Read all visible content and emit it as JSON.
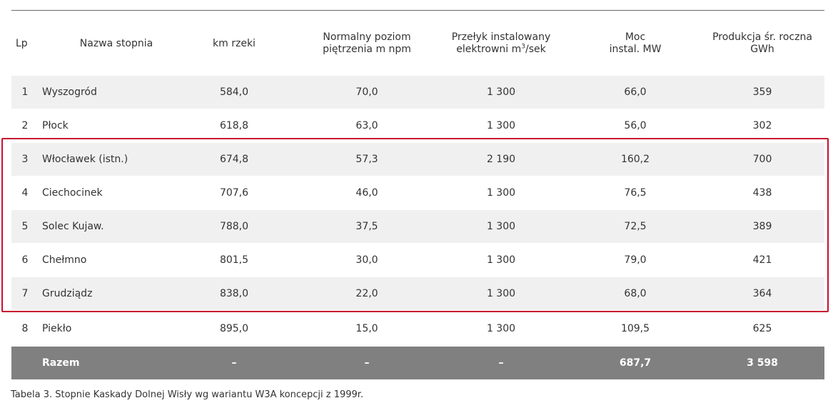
{
  "header": {
    "lp": "Lp",
    "name": "Nazwa stopnia",
    "km": "km rzeki",
    "level_l1": "Normalny poziom",
    "level_l2": "piętrzenia m npm",
    "flow_l1": "Przełyk instalowany",
    "flow_l2a": "elektrowni m",
    "flow_sup": "3",
    "flow_l2b": "/sek",
    "power_l1": "Moc",
    "power_l2": "instal. MW",
    "prod_l1": "Produkcja śr. roczna",
    "prod_l2": "GWh"
  },
  "rows": [
    {
      "lp": "1",
      "name": "Wyszogród",
      "km": "584,0",
      "level": "70,0",
      "flow": "1 300",
      "power": "66,0",
      "production": "359"
    },
    {
      "lp": "2",
      "name": "Płock",
      "km": "618,8",
      "level": "63,0",
      "flow": "1 300",
      "power": "56,0",
      "production": "302"
    },
    {
      "lp": "3",
      "name": "Włocławek (istn.)",
      "km": "674,8",
      "level": "57,3",
      "flow": "2 190",
      "power": "160,2",
      "production": "700"
    },
    {
      "lp": "4",
      "name": "Ciechocinek",
      "km": "707,6",
      "level": "46,0",
      "flow": "1 300",
      "power": "76,5",
      "production": "438"
    },
    {
      "lp": "5",
      "name": "Solec Kujaw.",
      "km": "788,0",
      "level": "37,5",
      "flow": "1 300",
      "power": "72,5",
      "production": "389"
    },
    {
      "lp": "6",
      "name": "Chełmno",
      "km": "801,5",
      "level": "30,0",
      "flow": "1 300",
      "power": "79,0",
      "production": "421"
    },
    {
      "lp": "7",
      "name": "Grudziądz",
      "km": "838,0",
      "level": "22,0",
      "flow": "1 300",
      "power": "68,0",
      "production": "364"
    },
    {
      "lp": "8",
      "name": "Piekło",
      "km": "895,0",
      "level": "15,0",
      "flow": "1 300",
      "power": "109,5",
      "production": "625"
    }
  ],
  "total": {
    "lp": "",
    "name": "Razem",
    "km": "–",
    "level": "–",
    "flow": "–",
    "power": "687,7",
    "production": "3 598"
  },
  "caption": "Tabela 3. Stopnie Kaskady Dolnej Wisły wg wariantu W3A koncepcji z 1999r.",
  "colors": {
    "highlight_border": "#c8102e",
    "total_row": "#808080",
    "shaded_row": "#f0f0f0"
  }
}
